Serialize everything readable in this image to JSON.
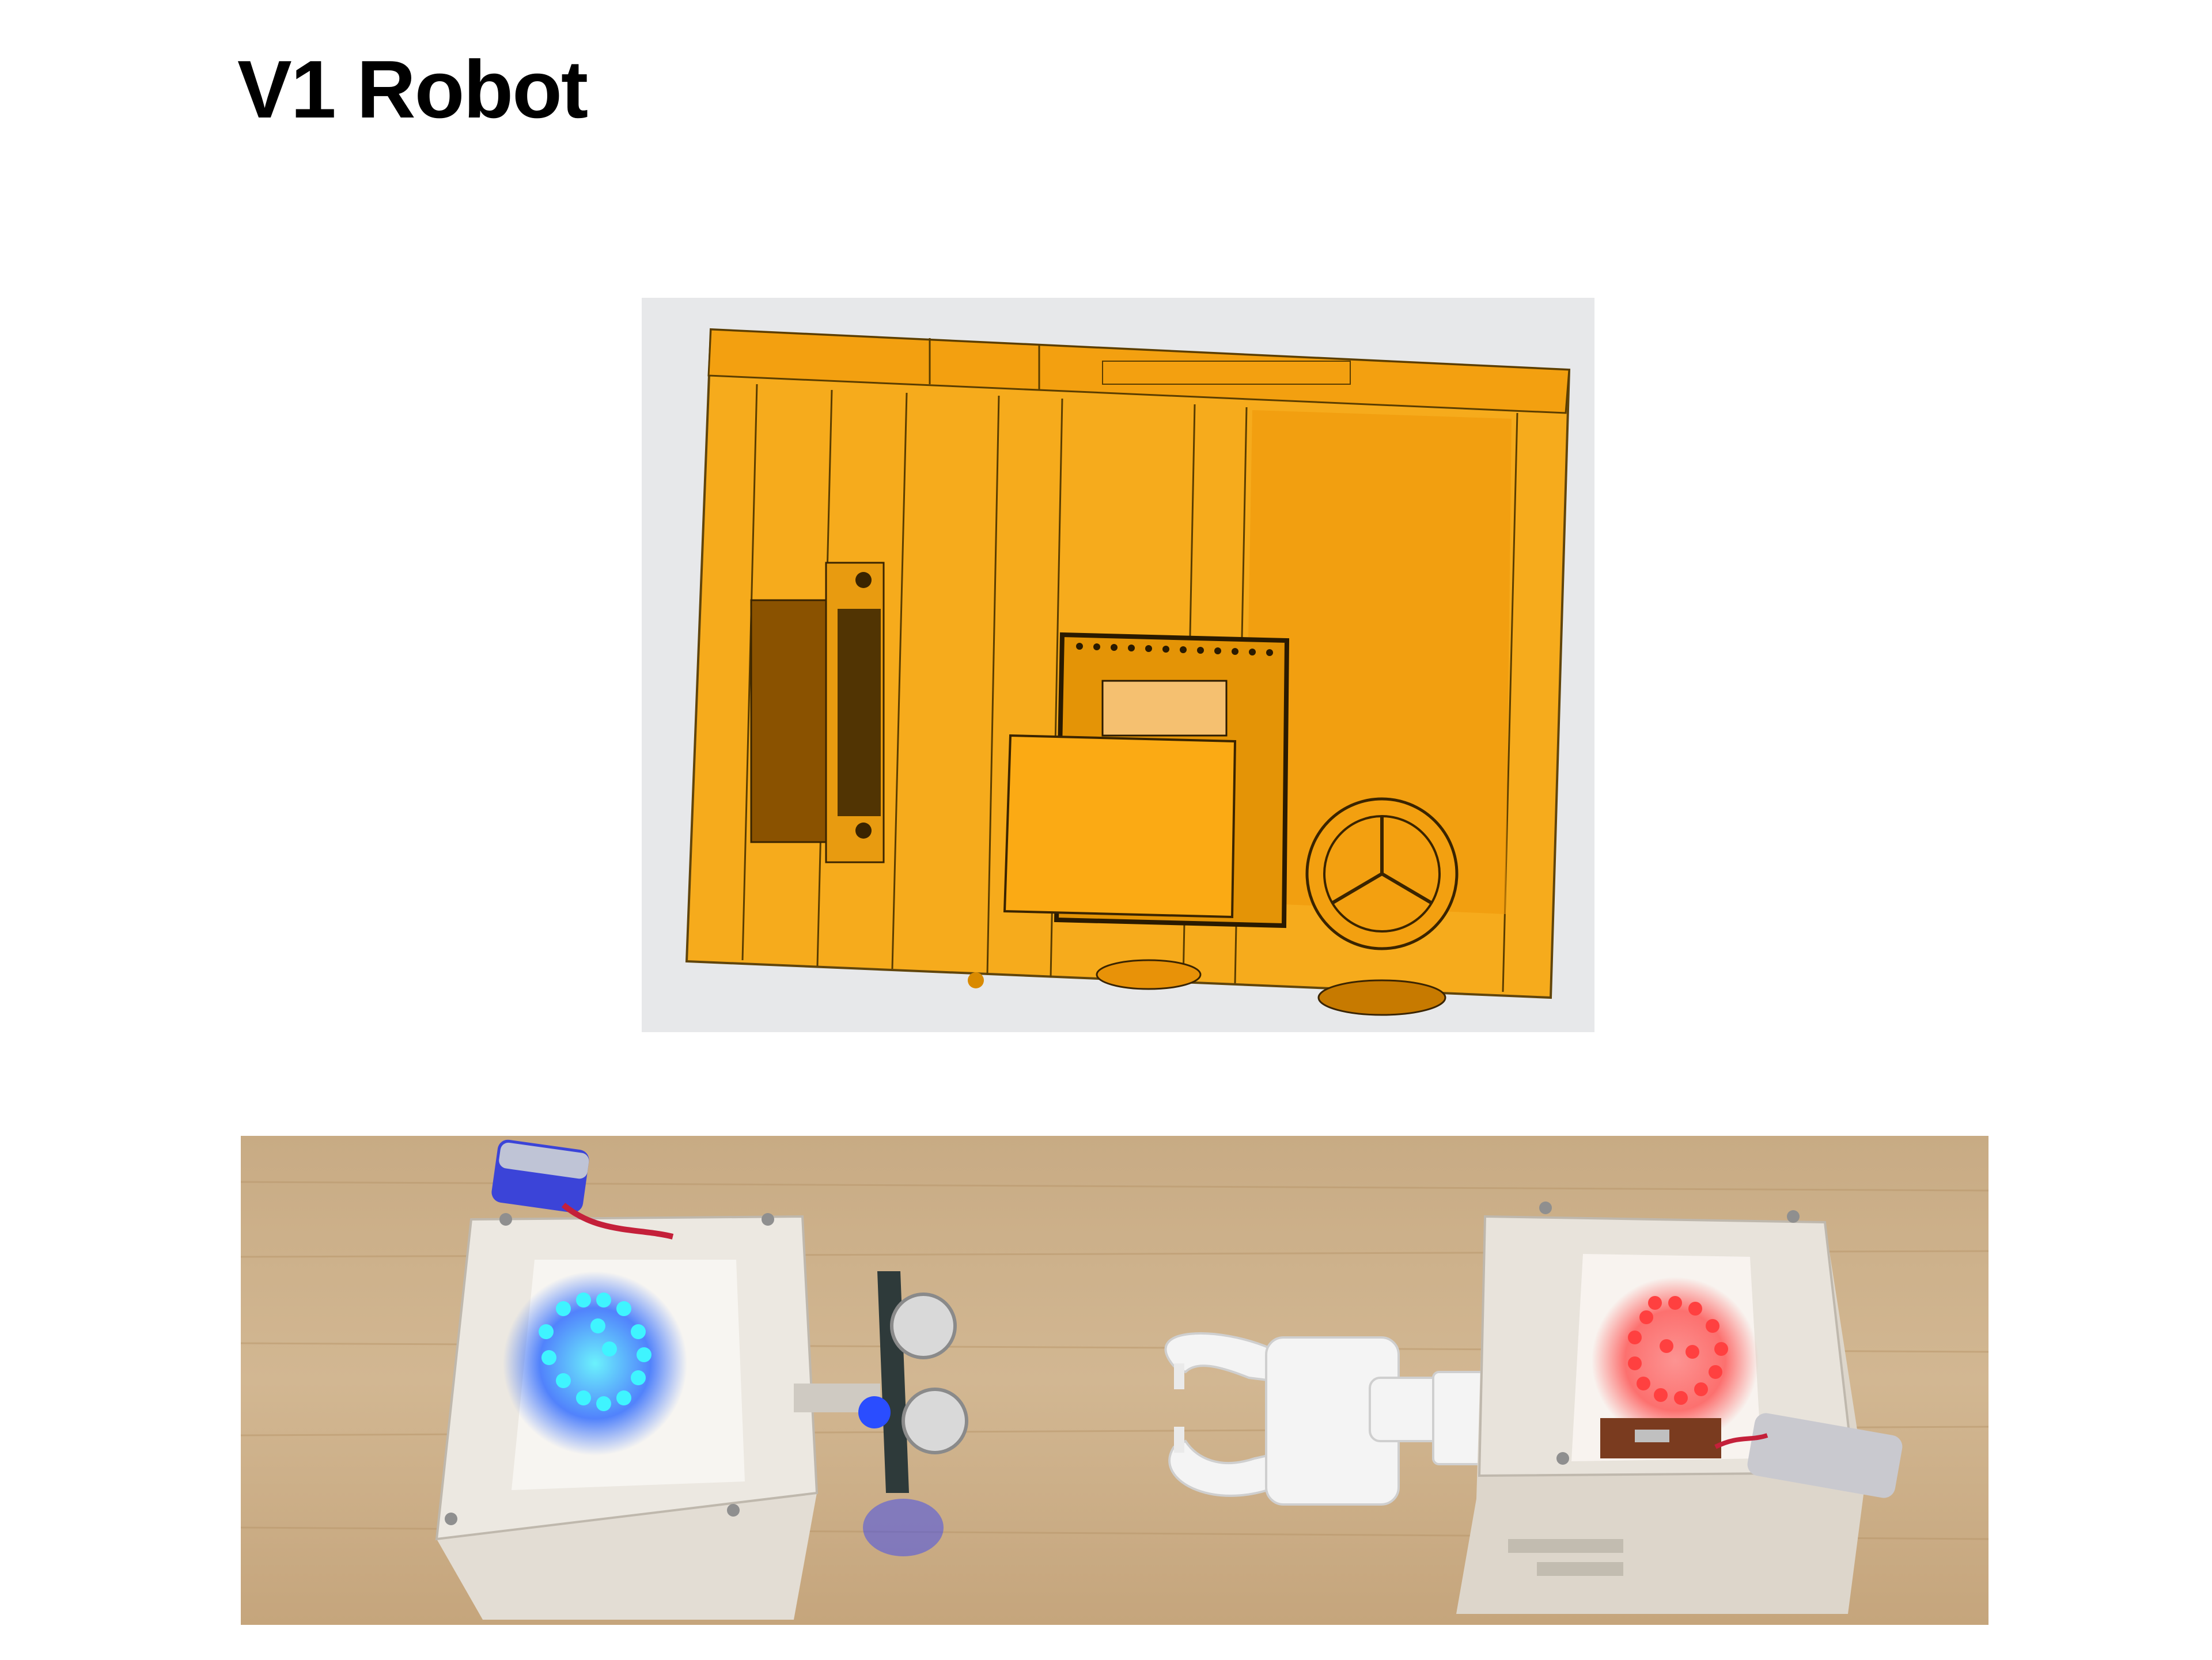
{
  "slide": {
    "title": "V1 Robot"
  },
  "figures": {
    "cad_render": {
      "kind": "cad-render",
      "colors": {
        "background": "#e7e8ea",
        "body": "#f6a20c",
        "edge": "#4a3400"
      }
    },
    "photo": {
      "kind": "photo",
      "colors": {
        "table": "#cdb08a",
        "robot_shell": "#e9e6e0",
        "left_display": "#1ee6ff",
        "right_display": "#ff3a3a"
      }
    }
  }
}
